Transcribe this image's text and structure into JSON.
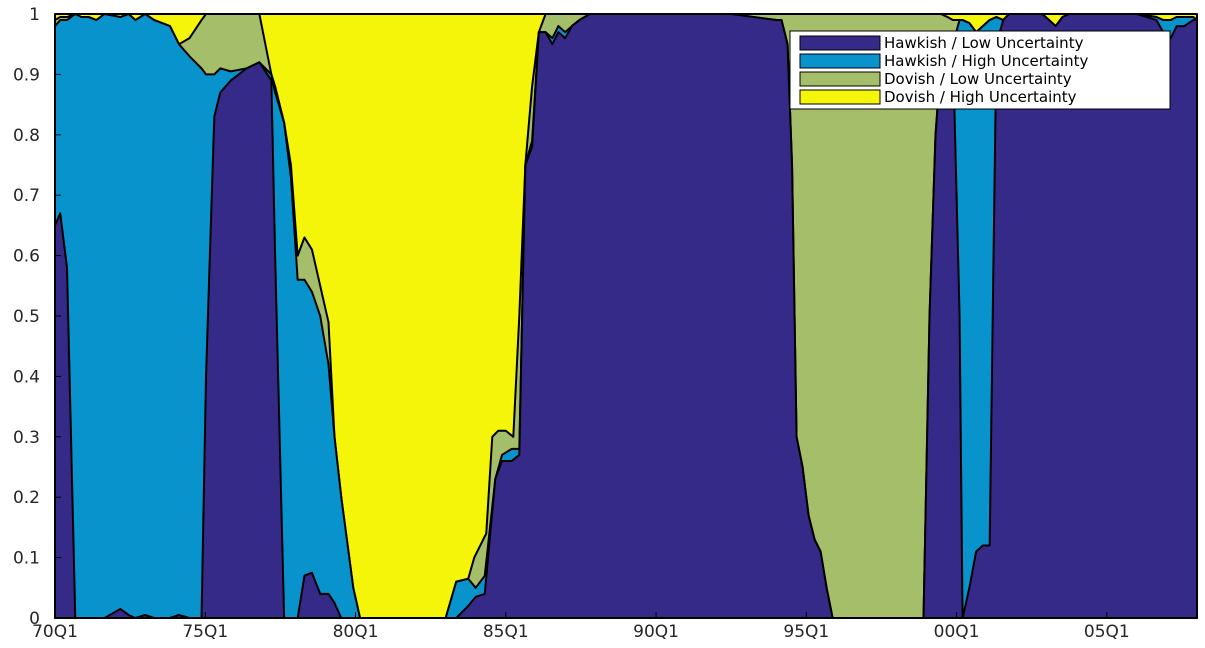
{
  "chart_data": {
    "type": "area",
    "stacked": true,
    "title": "",
    "xlabel": "",
    "ylabel": "",
    "xlim": [
      0,
      152
    ],
    "ylim": [
      0,
      1
    ],
    "x_unit": "quarters since 70Q1",
    "x_ticks": [
      {
        "x": 0,
        "label": "70Q1"
      },
      {
        "x": 20,
        "label": "75Q1"
      },
      {
        "x": 40,
        "label": "80Q1"
      },
      {
        "x": 60,
        "label": "85Q1"
      },
      {
        "x": 80,
        "label": "90Q1"
      },
      {
        "x": 100,
        "label": "95Q1"
      },
      {
        "x": 120,
        "label": "00Q1"
      },
      {
        "x": 140,
        "label": "05Q1"
      }
    ],
    "y_ticks": [
      0,
      0.1,
      0.2,
      0.3,
      0.4,
      0.5,
      0.6,
      0.7,
      0.8,
      0.9,
      1
    ],
    "y_tick_labels": [
      "0",
      "0.1",
      "0.2",
      "0.3",
      "0.4",
      "0.5",
      "0.6",
      "0.7",
      "0.8",
      "0.9",
      "1"
    ],
    "legend_position": "top-right",
    "grid": false,
    "series": [
      {
        "name": "Hawkish / Low Uncertainty",
        "color": "#352a87",
        "points": [
          [
            0,
            0.65
          ],
          [
            0.7,
            0.67
          ],
          [
            1.6,
            0.58
          ],
          [
            2.7,
            0.0
          ],
          [
            3.5,
            0.0
          ],
          [
            4.5,
            0.0
          ],
          [
            5.5,
            0.0
          ],
          [
            6.6,
            0.0
          ],
          [
            8.7,
            0.015
          ],
          [
            9.8,
            0.005
          ],
          [
            10.7,
            0.0
          ],
          [
            12,
            0.005
          ],
          [
            13.2,
            0.0
          ],
          [
            15.3,
            0.0
          ],
          [
            16.5,
            0.005
          ],
          [
            17.9,
            0.0
          ],
          [
            19.5,
            0.0
          ],
          [
            20.1,
            0.4
          ],
          [
            21.2,
            0.83
          ],
          [
            22,
            0.87
          ],
          [
            23.4,
            0.89
          ],
          [
            25.5,
            0.91
          ],
          [
            27.2,
            0.92
          ],
          [
            28.8,
            0.89
          ],
          [
            29.3,
            0.6
          ],
          [
            30.5,
            0.0
          ],
          [
            31.4,
            0.0
          ],
          [
            32.3,
            0.0
          ],
          [
            33.2,
            0.07
          ],
          [
            34.2,
            0.075
          ],
          [
            35.3,
            0.04
          ],
          [
            36.4,
            0.04
          ],
          [
            37.2,
            0.025
          ],
          [
            38.1,
            0.0
          ],
          [
            39.7,
            0.0
          ],
          [
            47,
            0.0
          ],
          [
            52,
            0.0
          ],
          [
            53.4,
            0.0
          ],
          [
            55,
            0.02
          ],
          [
            56,
            0.035
          ],
          [
            57.2,
            0.04
          ],
          [
            58.6,
            0.23
          ],
          [
            59.5,
            0.26
          ],
          [
            60.8,
            0.26
          ],
          [
            61.8,
            0.27
          ],
          [
            62.6,
            0.75
          ],
          [
            63.5,
            0.78
          ],
          [
            64.4,
            0.97
          ],
          [
            65.3,
            0.97
          ],
          [
            66.2,
            0.95
          ],
          [
            67,
            0.97
          ],
          [
            67.9,
            0.96
          ],
          [
            68.8,
            0.98
          ],
          [
            69.8,
            0.99
          ],
          [
            71.2,
            1.0
          ],
          [
            80,
            1.0
          ],
          [
            90,
            1.0
          ],
          [
            96,
            0.99
          ],
          [
            96.7,
            0.99
          ],
          [
            97.5,
            0.95
          ],
          [
            98.1,
            0.75
          ],
          [
            98.7,
            0.3
          ],
          [
            99.5,
            0.25
          ],
          [
            100.3,
            0.17
          ],
          [
            101.1,
            0.13
          ],
          [
            101.9,
            0.11
          ],
          [
            102.7,
            0.05
          ],
          [
            103.5,
            0.0
          ],
          [
            110,
            0.0
          ],
          [
            115.6,
            0.0
          ],
          [
            116.4,
            0.5
          ],
          [
            117.2,
            0.8
          ],
          [
            117.9,
            0.92
          ],
          [
            118.8,
            0.92
          ],
          [
            119.5,
            0.95
          ],
          [
            120.4,
            0.5
          ],
          [
            120.8,
            0.0
          ],
          [
            121.7,
            0.05
          ],
          [
            122.6,
            0.11
          ],
          [
            123.5,
            0.12
          ],
          [
            124.4,
            0.12
          ],
          [
            125.3,
            0.95
          ],
          [
            126.2,
            0.99
          ],
          [
            127,
            1.0
          ],
          [
            131.4,
            1.0
          ],
          [
            132.3,
            0.99
          ],
          [
            133.2,
            0.98
          ],
          [
            134.1,
            0.995
          ],
          [
            135,
            1.0
          ],
          [
            144,
            1.0
          ],
          [
            146.6,
            0.99
          ],
          [
            147.5,
            0.97
          ],
          [
            148.5,
            0.96
          ],
          [
            149.3,
            0.98
          ],
          [
            150.3,
            0.98
          ],
          [
            151.5,
            0.99
          ],
          [
            152,
            0.99
          ]
        ]
      },
      {
        "name": "Hawkish / High Uncertainty",
        "color": "#0993cd",
        "points": [
          [
            0,
            0.98
          ],
          [
            0.7,
            0.99
          ],
          [
            1.6,
            0.99
          ],
          [
            2.7,
            1.0
          ],
          [
            3.5,
            0.995
          ],
          [
            4.5,
            0.995
          ],
          [
            5.5,
            0.99
          ],
          [
            6.6,
            1.0
          ],
          [
            8.7,
            0.995
          ],
          [
            9.8,
            1.0
          ],
          [
            10.7,
            0.99
          ],
          [
            12,
            1.0
          ],
          [
            13.2,
            0.99
          ],
          [
            15.3,
            0.98
          ],
          [
            16.5,
            0.95
          ],
          [
            17.9,
            0.93
          ],
          [
            19.5,
            0.91
          ],
          [
            20.1,
            0.9
          ],
          [
            21.2,
            0.9
          ],
          [
            22,
            0.91
          ],
          [
            23.4,
            0.905
          ],
          [
            25.5,
            0.91
          ],
          [
            27.2,
            0.92
          ],
          [
            28.8,
            0.9
          ],
          [
            29.3,
            0.87
          ],
          [
            30.5,
            0.82
          ],
          [
            31.4,
            0.73
          ],
          [
            32.3,
            0.56
          ],
          [
            33.2,
            0.56
          ],
          [
            34.2,
            0.54
          ],
          [
            35.3,
            0.5
          ],
          [
            36.4,
            0.42
          ],
          [
            37.2,
            0.3
          ],
          [
            38.1,
            0.2
          ],
          [
            39.7,
            0.05
          ],
          [
            40.6,
            0.0
          ],
          [
            47,
            0.0
          ],
          [
            52,
            0.0
          ],
          [
            53.4,
            0.06
          ],
          [
            55,
            0.065
          ],
          [
            56,
            0.05
          ],
          [
            57.2,
            0.07
          ],
          [
            58.6,
            0.23
          ],
          [
            59.5,
            0.27
          ],
          [
            60.8,
            0.28
          ],
          [
            61.8,
            0.28
          ],
          [
            62.6,
            0.75
          ],
          [
            63.5,
            0.79
          ],
          [
            64.4,
            0.97
          ],
          [
            65.3,
            0.97
          ],
          [
            66.2,
            0.96
          ],
          [
            67,
            0.98
          ],
          [
            67.9,
            0.97
          ],
          [
            68.8,
            0.98
          ],
          [
            69.8,
            0.99
          ],
          [
            71.2,
            1.0
          ],
          [
            80,
            1.0
          ],
          [
            90,
            1.0
          ],
          [
            96,
            0.99
          ],
          [
            96.7,
            0.99
          ],
          [
            97.5,
            0.95
          ],
          [
            98.1,
            0.75
          ],
          [
            98.7,
            0.3
          ],
          [
            99.5,
            0.25
          ],
          [
            100.3,
            0.17
          ],
          [
            101.1,
            0.13
          ],
          [
            101.9,
            0.11
          ],
          [
            102.7,
            0.05
          ],
          [
            103.5,
            0.0
          ],
          [
            110,
            0.0
          ],
          [
            115.6,
            0.0
          ],
          [
            116.4,
            0.5
          ],
          [
            117.2,
            0.8
          ],
          [
            117.9,
            0.92
          ],
          [
            118.8,
            0.92
          ],
          [
            119.5,
            0.95
          ],
          [
            120.4,
            0.99
          ],
          [
            120.8,
            0.99
          ],
          [
            121.7,
            0.985
          ],
          [
            122.6,
            0.97
          ],
          [
            123.5,
            0.98
          ],
          [
            124.4,
            0.99
          ],
          [
            125.3,
            0.995
          ],
          [
            126.2,
            0.99
          ],
          [
            127,
            1.0
          ],
          [
            131.4,
            1.0
          ],
          [
            132.3,
            0.99
          ],
          [
            133.2,
            0.98
          ],
          [
            134.1,
            0.995
          ],
          [
            135,
            1.0
          ],
          [
            144,
            1.0
          ],
          [
            146.6,
            0.995
          ],
          [
            147.5,
            0.99
          ],
          [
            148.5,
            0.99
          ],
          [
            149.3,
            0.995
          ],
          [
            150.3,
            0.995
          ],
          [
            151.5,
            0.995
          ],
          [
            152,
            0.99
          ]
        ]
      },
      {
        "name": "Dovish / Low Uncertainty",
        "color": "#a5be6a",
        "points": [
          [
            0,
            0.99
          ],
          [
            0.7,
            0.995
          ],
          [
            1.6,
            0.995
          ],
          [
            2.7,
            1.0
          ],
          [
            3.5,
            0.995
          ],
          [
            4.5,
            0.995
          ],
          [
            5.5,
            0.99
          ],
          [
            6.6,
            1.0
          ],
          [
            8.7,
            0.995
          ],
          [
            9.8,
            1.0
          ],
          [
            10.7,
            0.99
          ],
          [
            12,
            1.0
          ],
          [
            13.2,
            0.99
          ],
          [
            15.3,
            0.98
          ],
          [
            16.5,
            0.95
          ],
          [
            17.9,
            0.96
          ],
          [
            19.5,
            0.99
          ],
          [
            20.1,
            1.0
          ],
          [
            21.2,
            1.0
          ],
          [
            22,
            1.0
          ],
          [
            23.4,
            1.0
          ],
          [
            25.5,
            1.0
          ],
          [
            27.2,
            1.0
          ],
          [
            28.8,
            0.9
          ],
          [
            29.3,
            0.88
          ],
          [
            30.5,
            0.82
          ],
          [
            31.4,
            0.75
          ],
          [
            32.3,
            0.6
          ],
          [
            33.2,
            0.63
          ],
          [
            34.2,
            0.61
          ],
          [
            35.3,
            0.55
          ],
          [
            36.4,
            0.49
          ],
          [
            37.2,
            0.3
          ],
          [
            38.1,
            0.2
          ],
          [
            39.7,
            0.05
          ],
          [
            40.6,
            0.0
          ],
          [
            47,
            0.0
          ],
          [
            52,
            0.0
          ],
          [
            53.4,
            0.06
          ],
          [
            55,
            0.065
          ],
          [
            55.8,
            0.1
          ],
          [
            56.6,
            0.12
          ],
          [
            57.4,
            0.14
          ],
          [
            58.2,
            0.3
          ],
          [
            59,
            0.31
          ],
          [
            60,
            0.31
          ],
          [
            61,
            0.3
          ],
          [
            61.8,
            0.5
          ],
          [
            62.6,
            0.75
          ],
          [
            63.5,
            0.88
          ],
          [
            64.4,
            0.97
          ],
          [
            65.3,
            1.0
          ],
          [
            71.2,
            1.0
          ],
          [
            80,
            1.0
          ],
          [
            90,
            1.0
          ],
          [
            100,
            1.0
          ],
          [
            110,
            1.0
          ],
          [
            115.6,
            1.0
          ],
          [
            116.4,
            1.0
          ],
          [
            117.2,
            1.0
          ],
          [
            117.9,
            1.0
          ],
          [
            118.8,
            0.995
          ],
          [
            119.5,
            0.99
          ],
          [
            120.4,
            0.99
          ],
          [
            120.8,
            0.99
          ],
          [
            121.7,
            0.985
          ],
          [
            122.6,
            0.97
          ],
          [
            123.5,
            0.98
          ],
          [
            124.4,
            0.99
          ],
          [
            125.3,
            0.995
          ],
          [
            126.2,
            0.99
          ],
          [
            127,
            1.0
          ],
          [
            131.4,
            1.0
          ],
          [
            132.3,
            0.99
          ],
          [
            133.2,
            0.98
          ],
          [
            134.1,
            0.995
          ],
          [
            135,
            1.0
          ],
          [
            144,
            1.0
          ],
          [
            146.6,
            0.995
          ],
          [
            147.5,
            0.99
          ],
          [
            148.5,
            0.99
          ],
          [
            149.3,
            0.995
          ],
          [
            150.3,
            0.995
          ],
          [
            151.5,
            0.995
          ],
          [
            152,
            0.99
          ]
        ]
      },
      {
        "name": "Dovish / High Uncertainty",
        "color": "#f5f50a",
        "points": [
          [
            0,
            1.0
          ],
          [
            152,
            1.0
          ]
        ]
      }
    ]
  }
}
